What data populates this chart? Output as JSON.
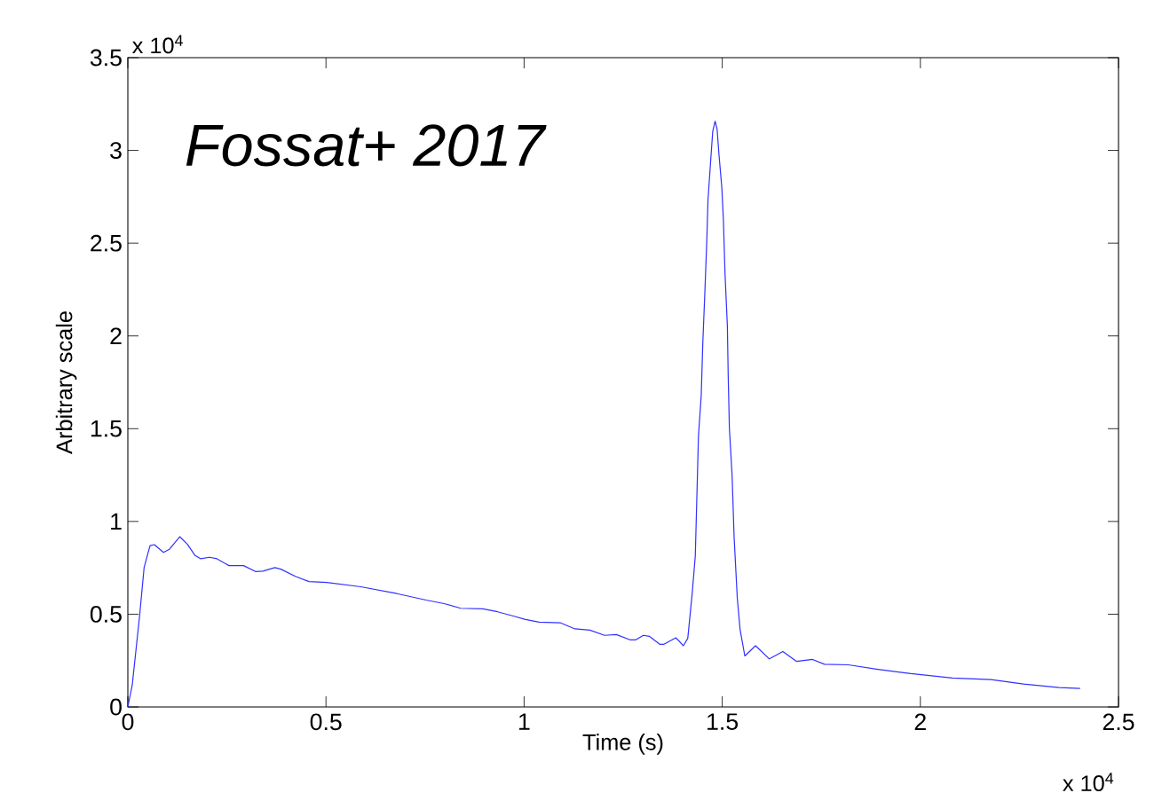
{
  "chart_data": {
    "type": "line",
    "xlabel": "Time (s)",
    "ylabel": "Arbitrary scale",
    "annotations": [
      "*Fossat+ 2017*",
      "x 10$^{4}$",
      "x 10$^{4}$"
    ],
    "xlim": [
      0,
      2.5
    ],
    "ylim": [
      0,
      3.5
    ],
    "xticks": [
      0,
      0.5,
      1,
      1.5,
      2,
      2.5
    ],
    "yticks": [
      0,
      0.5,
      1,
      1.5,
      2,
      2.5,
      3,
      3.5
    ],
    "grid": false,
    "series": [
      {
        "color": "#3030ff",
        "x": [
          0,
          0.011,
          0.03,
          0.041,
          0.056,
          0.067,
          0.09,
          0.105,
          0.131,
          0.15,
          0.169,
          0.184,
          0.206,
          0.225,
          0.255,
          0.292,
          0.322,
          0.341,
          0.371,
          0.386,
          0.424,
          0.457,
          0.502,
          0.588,
          0.679,
          0.753,
          0.798,
          0.84,
          0.896,
          0.933,
          0.975,
          1.001,
          1.038,
          1.091,
          1.128,
          1.166,
          1.203,
          1.233,
          1.267,
          1.282,
          1.301,
          1.316,
          1.342,
          1.353,
          1.383,
          1.402,
          1.413,
          1.424,
          1.432,
          1.44,
          1.447,
          1.451,
          1.456,
          1.461,
          1.464,
          1.471,
          1.476,
          1.482,
          1.487,
          1.492,
          1.499,
          1.503,
          1.507,
          1.513,
          1.515,
          1.518,
          1.525,
          1.53,
          1.538,
          1.545,
          1.557,
          1.584,
          1.619,
          1.653,
          1.687,
          1.728,
          1.758,
          1.818,
          1.893,
          1.976,
          2.081,
          2.178,
          2.26,
          2.35,
          2.403
        ],
        "values": [
          0,
          0.116,
          0.497,
          0.751,
          0.87,
          0.875,
          0.833,
          0.85,
          0.918,
          0.878,
          0.818,
          0.799,
          0.807,
          0.799,
          0.762,
          0.762,
          0.73,
          0.732,
          0.751,
          0.743,
          0.703,
          0.676,
          0.671,
          0.648,
          0.611,
          0.576,
          0.557,
          0.532,
          0.529,
          0.513,
          0.489,
          0.473,
          0.457,
          0.454,
          0.421,
          0.414,
          0.386,
          0.39,
          0.362,
          0.362,
          0.386,
          0.381,
          0.338,
          0.338,
          0.373,
          0.33,
          0.37,
          0.608,
          0.814,
          1.461,
          1.68,
          1.965,
          2.228,
          2.512,
          2.731,
          2.95,
          3.103,
          3.158,
          3.114,
          2.972,
          2.797,
          2.622,
          2.337,
          2.052,
          1.79,
          1.505,
          1.242,
          0.914,
          0.586,
          0.418,
          0.275,
          0.33,
          0.259,
          0.299,
          0.246,
          0.256,
          0.23,
          0.227,
          0.203,
          0.18,
          0.156,
          0.148,
          0.124,
          0.105,
          0.1
        ]
      }
    ]
  }
}
